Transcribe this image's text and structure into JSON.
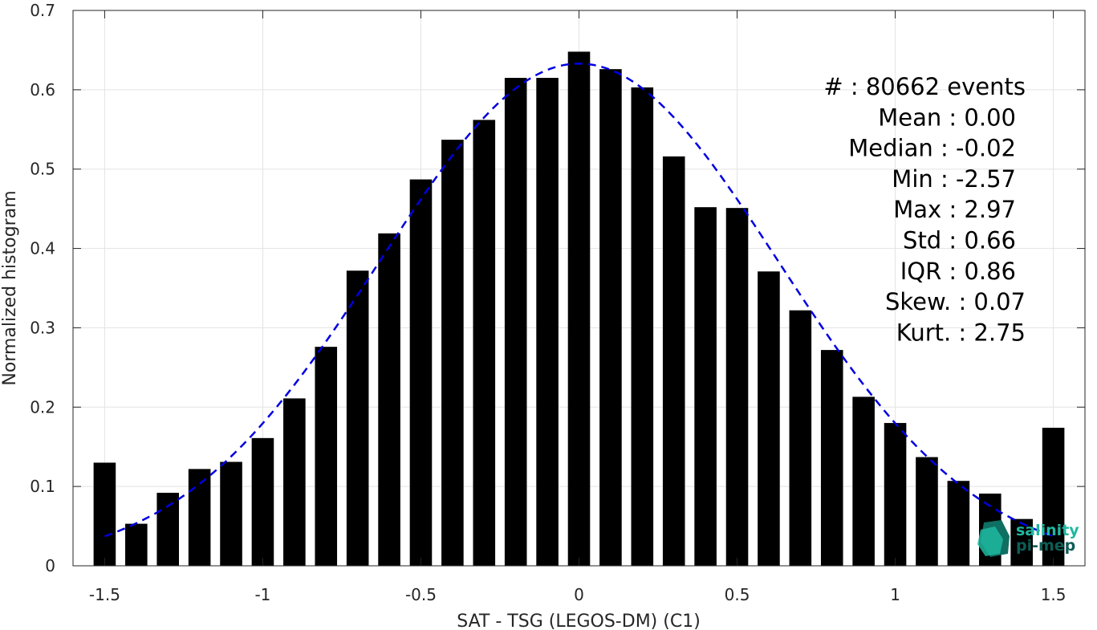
{
  "chart_data": {
    "type": "bar",
    "xlabel": "SAT - TSG (LEGOS-DM) (C1)",
    "ylabel": "Normalized histogram",
    "xlim": [
      -1.6,
      1.6
    ],
    "ylim": [
      0,
      0.7
    ],
    "x_ticks": [
      -1.5,
      -1,
      -0.5,
      0,
      0.5,
      1,
      1.5
    ],
    "x_tick_labels": [
      "-1.5",
      "-1",
      "-0.5",
      "0",
      "0.5",
      "1",
      "1.5"
    ],
    "y_ticks": [
      0,
      0.1,
      0.2,
      0.3,
      0.4,
      0.5,
      0.6,
      0.7
    ],
    "y_tick_labels": [
      "0",
      "0.1",
      "0.2",
      "0.3",
      "0.4",
      "0.5",
      "0.6",
      "0.7"
    ],
    "grid": true,
    "bar_width": 0.07,
    "bars": {
      "x": [
        -1.5,
        -1.4,
        -1.3,
        -1.2,
        -1.1,
        -1.0,
        -0.9,
        -0.8,
        -0.7,
        -0.6,
        -0.5,
        -0.4,
        -0.3,
        -0.2,
        -0.1,
        0.0,
        0.1,
        0.2,
        0.3,
        0.4,
        0.5,
        0.6,
        0.7,
        0.8,
        0.9,
        1.0,
        1.1,
        1.2,
        1.3,
        1.4,
        1.5
      ],
      "values": [
        0.13,
        0.053,
        0.092,
        0.122,
        0.131,
        0.161,
        0.211,
        0.276,
        0.372,
        0.419,
        0.487,
        0.537,
        0.562,
        0.615,
        0.615,
        0.648,
        0.626,
        0.603,
        0.516,
        0.452,
        0.451,
        0.371,
        0.322,
        0.272,
        0.213,
        0.18,
        0.137,
        0.107,
        0.091,
        0.059,
        0.174
      ],
      "color": "#000000"
    },
    "fit_curve": {
      "style": "dashed",
      "color": "#0000e0",
      "x_range": [
        -1.5,
        1.5
      ],
      "mean": 0.0,
      "std": 0.63,
      "peak": 0.633
    },
    "stats": [
      {
        "label": "#  ",
        "value": "80662 events"
      },
      {
        "label": "Mean",
        "value": "0.00"
      },
      {
        "label": "Median",
        "value": "-0.02"
      },
      {
        "label": "Min",
        "value": "-2.57"
      },
      {
        "label": "Max",
        "value": "2.97"
      },
      {
        "label": "Std",
        "value": "0.66"
      },
      {
        "label": "IQR",
        "value": "0.86"
      },
      {
        "label": "Skew.",
        "value": "0.07"
      },
      {
        "label": "Kurt.",
        "value": "2.75"
      }
    ],
    "logo": {
      "line1": "salinity",
      "line2": "pi-mep",
      "color_light": "#1fb8a0",
      "color_dark": "#0c5e55"
    }
  }
}
